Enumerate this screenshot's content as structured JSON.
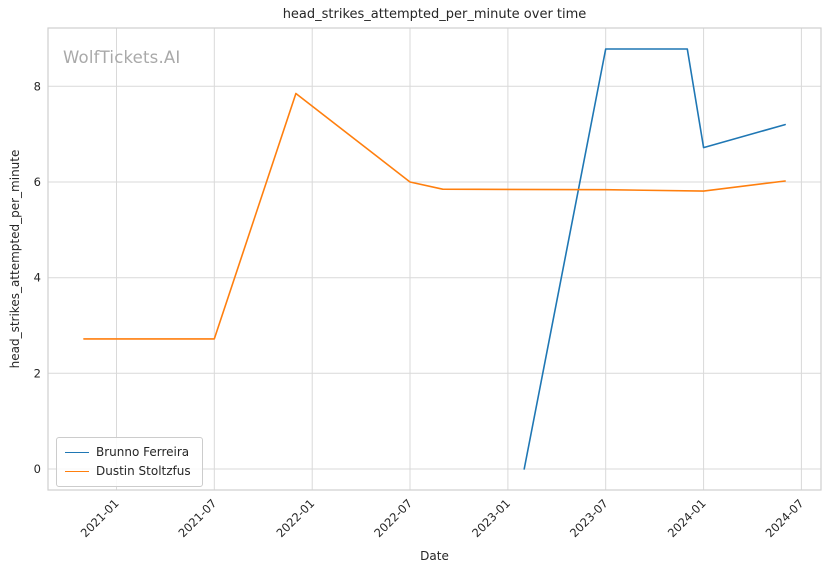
{
  "watermark": "WolfTickets.AI",
  "chart_data": {
    "type": "line",
    "title": "head_strikes_attempted_per_minute over time",
    "xlabel": "Date",
    "ylabel": "head_strikes_attempted_per_minute",
    "x_ticks": [
      "2021-01",
      "2021-07",
      "2022-01",
      "2022-07",
      "2023-01",
      "2023-07",
      "2024-01",
      "2024-07"
    ],
    "y_ticks": [
      0,
      2,
      4,
      6,
      8
    ],
    "xlim": [
      2020.65,
      2024.6
    ],
    "ylim": [
      -0.44,
      9.22
    ],
    "grid": true,
    "grid_color": "#d9d9d9",
    "border_color": "#cfcfcf",
    "legend_position": "lower left",
    "series": [
      {
        "name": "Brunno Ferreira",
        "color": "#1f77b4",
        "x": [
          "2023-02",
          "2023-07",
          "2023-12",
          "2024-01",
          "2024-06"
        ],
        "y": [
          0.0,
          8.78,
          8.78,
          6.72,
          7.2
        ]
      },
      {
        "name": "Dustin Stoltzfus",
        "color": "#ff7f0e",
        "x": [
          "2020-11",
          "2021-07",
          "2021-12",
          "2022-07",
          "2022-09",
          "2023-07",
          "2024-01",
          "2024-06"
        ],
        "y": [
          2.72,
          2.72,
          7.85,
          6.0,
          5.85,
          5.84,
          5.81,
          6.02
        ]
      }
    ]
  }
}
